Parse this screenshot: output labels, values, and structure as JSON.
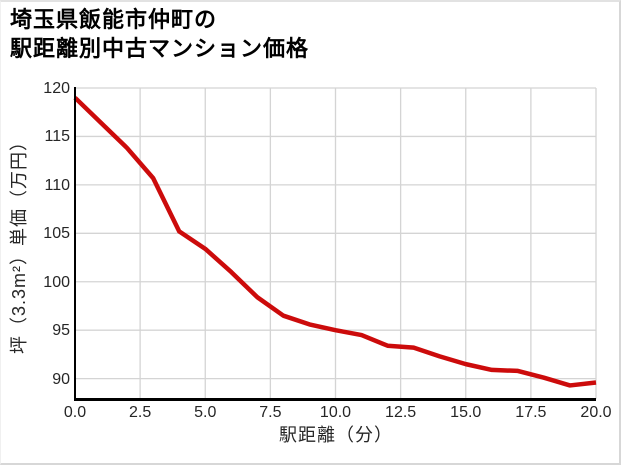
{
  "title": {
    "line1": "埼玉県飯能市仲町の",
    "line2": "駅距離別中古マンション価格"
  },
  "chart_data": {
    "type": "line",
    "title": "埼玉県飯能市仲町の 駅距離別中古マンション価格",
    "xlabel": "駅距離（分）",
    "ylabel": "坪（3.3m²）単価（万円）",
    "x": [
      0,
      1,
      2,
      3,
      4,
      5,
      6,
      7,
      8,
      9,
      10,
      11,
      12,
      13,
      14,
      15,
      16,
      17,
      18,
      19,
      20
    ],
    "values": [
      119.0,
      116.4,
      113.8,
      110.7,
      105.2,
      103.4,
      101.0,
      98.4,
      96.5,
      95.6,
      95.0,
      94.5,
      93.4,
      93.2,
      92.3,
      91.5,
      90.9,
      90.8,
      90.1,
      89.3,
      89.6
    ],
    "xticks": [
      "0.0",
      "2.5",
      "5.0",
      "7.5",
      "10.0",
      "12.5",
      "15.0",
      "17.5",
      "20.0"
    ],
    "yticks": [
      "90",
      "95",
      "100",
      "105",
      "110",
      "115",
      "120"
    ],
    "xlim": [
      0,
      20
    ],
    "ylim": [
      87.9,
      120
    ],
    "grid": true,
    "legend": false,
    "line_color": "#cc0b0b",
    "grid_color": "#d4d4d4",
    "axis_color": "#000000",
    "tick_color": "#262626"
  }
}
